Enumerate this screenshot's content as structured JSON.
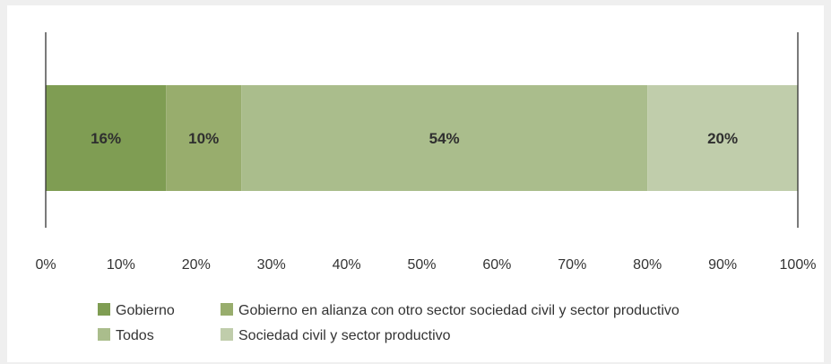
{
  "chart_data": {
    "type": "bar",
    "orientation": "horizontal-stacked-100",
    "categories": [
      ""
    ],
    "series": [
      {
        "name": "Gobierno",
        "values": [
          16
        ],
        "label": "16%",
        "color": "#7f9d53"
      },
      {
        "name": "Gobierno en alianza con otro sector sociedad civil y sector productivo",
        "values": [
          10
        ],
        "label": "10%",
        "color": "#98ad6d"
      },
      {
        "name": "Todos",
        "values": [
          54
        ],
        "label": "54%",
        "color": "#aabd8c"
      },
      {
        "name": "Sociedad civil y sector productivo",
        "values": [
          20
        ],
        "label": "20%",
        "color": "#c0cdab"
      }
    ],
    "xlim": [
      0,
      100
    ],
    "xticks": [
      "0%",
      "10%",
      "20%",
      "30%",
      "40%",
      "50%",
      "60%",
      "70%",
      "80%",
      "90%",
      "100%"
    ],
    "grid": false,
    "legend_position": "bottom-left",
    "title": "",
    "xlabel": "",
    "ylabel": ""
  }
}
